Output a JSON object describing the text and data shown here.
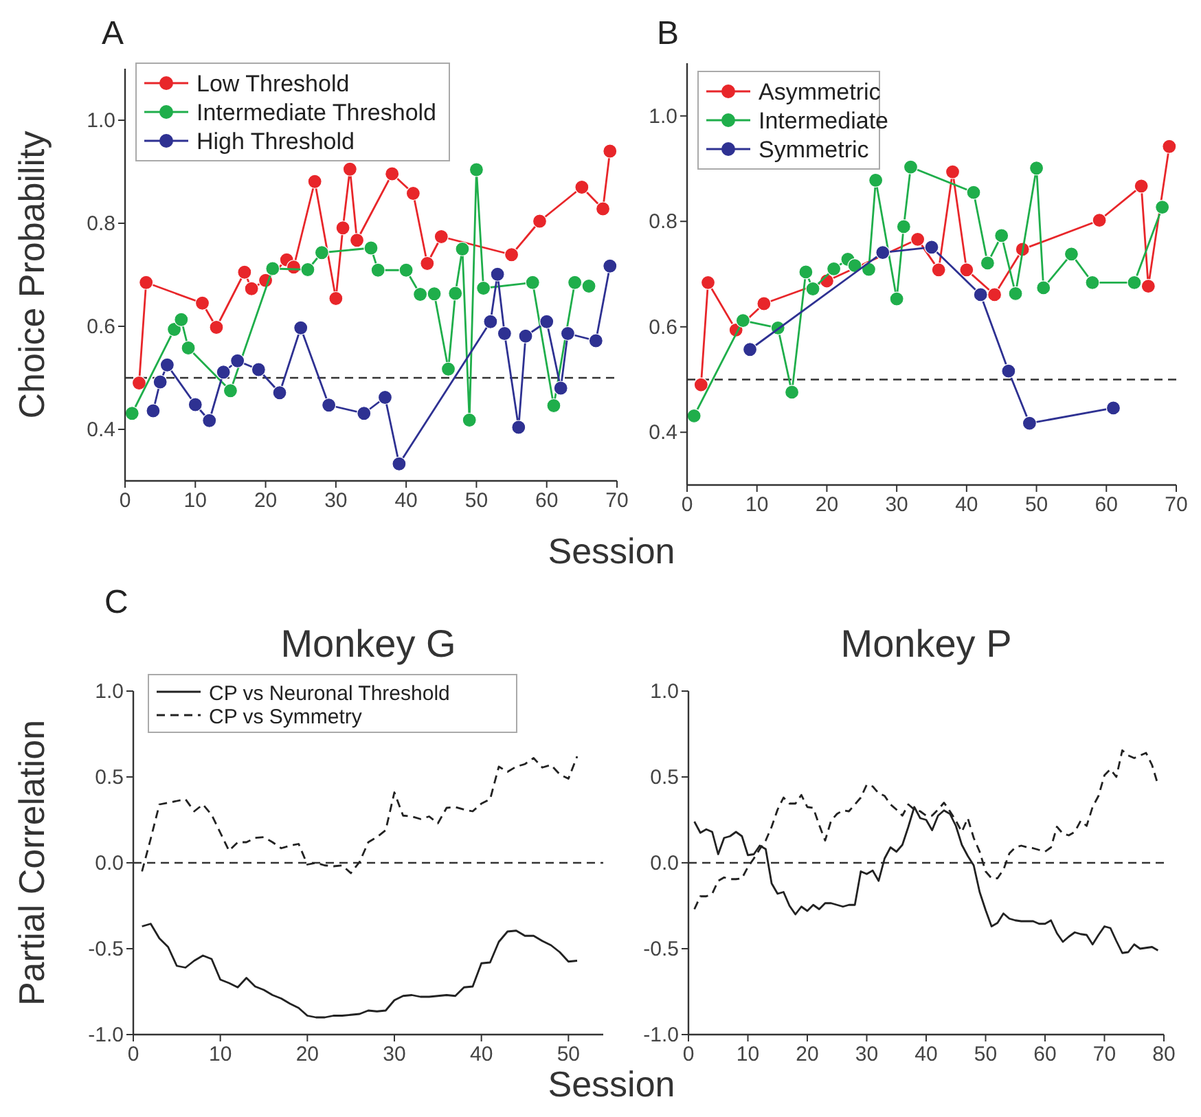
{
  "chart_data": [
    {
      "type": "line",
      "xlabel": "Session",
      "ylabel": "Choice Probability",
      "annotations": [
        "A"
      ],
      "xlim": [
        0,
        70
      ],
      "ylim": [
        0.3,
        1.1
      ],
      "xticks": [
        0,
        10,
        20,
        30,
        40,
        50,
        60,
        70
      ],
      "yticks": [
        {
          "value": 0.4,
          "label": "0.4"
        },
        {
          "value": 0.6,
          "label": "0.6"
        },
        {
          "value": 0.8,
          "label": "0.8"
        },
        {
          "value": 1.0,
          "label": "1.0"
        }
      ],
      "legend": "top left",
      "marker": "circle",
      "ref_lines": [
        {
          "axis": "y",
          "value": 0.5,
          "line_style": "dashed",
          "color": "#333333"
        }
      ],
      "series": [
        {
          "name": "Low Threshold",
          "color": "#e8262a",
          "x": [
            2,
            3,
            11,
            13,
            17,
            18,
            20,
            23,
            24,
            27,
            30,
            31,
            32,
            33,
            38,
            41,
            43,
            45,
            55,
            59,
            65,
            68,
            69
          ],
          "values": [
            0.49,
            0.685,
            0.645,
            0.598,
            0.705,
            0.673,
            0.689,
            0.729,
            0.715,
            0.881,
            0.654,
            0.791,
            0.905,
            0.767,
            0.896,
            0.858,
            0.722,
            0.774,
            0.739,
            0.804,
            0.87,
            0.828,
            0.94
          ]
        },
        {
          "name": "Intermediate Threshold",
          "color": "#1fae4b",
          "x": [
            1,
            7,
            8,
            9,
            15,
            21,
            26,
            28,
            35,
            36,
            40,
            42,
            44,
            46,
            47,
            48,
            49,
            50,
            51,
            58,
            61,
            64,
            66
          ],
          "values": [
            0.431,
            0.594,
            0.613,
            0.558,
            0.475,
            0.712,
            0.71,
            0.743,
            0.752,
            0.709,
            0.709,
            0.662,
            0.663,
            0.517,
            0.664,
            0.75,
            0.418,
            0.904,
            0.674,
            0.685,
            0.446,
            0.685,
            0.678
          ]
        },
        {
          "name": "High Threshold",
          "color": "#2e3192",
          "x": [
            4,
            5,
            6,
            10,
            12,
            14,
            16,
            19,
            22,
            25,
            29,
            34,
            37,
            39,
            52,
            53,
            54,
            56,
            57,
            60,
            62,
            63,
            67,
            69
          ],
          "values": [
            0.436,
            0.492,
            0.525,
            0.448,
            0.417,
            0.511,
            0.533,
            0.516,
            0.471,
            0.597,
            0.447,
            0.431,
            0.462,
            0.333,
            0.609,
            0.701,
            0.586,
            0.404,
            0.581,
            0.609,
            0.48,
            0.586,
            0.572,
            0.717
          ]
        }
      ]
    },
    {
      "type": "line",
      "annotations": [
        "B"
      ],
      "xlim": [
        0,
        70
      ],
      "ylim": [
        0.3,
        1.1
      ],
      "xticks": [
        0,
        10,
        20,
        30,
        40,
        50,
        60,
        70
      ],
      "yticks": [
        {
          "value": 0.4,
          "label": "0.4"
        },
        {
          "value": 0.6,
          "label": "0.6"
        },
        {
          "value": 0.8,
          "label": "0.8"
        },
        {
          "value": 1.0,
          "label": "1.0"
        }
      ],
      "legend": "top left",
      "marker": "circle",
      "ref_lines": [
        {
          "axis": "y",
          "value": 0.5,
          "line_style": "dashed",
          "color": "#333333"
        }
      ],
      "series": [
        {
          "name": "Asymmetric",
          "color": "#e8262a",
          "x": [
            2,
            3,
            7,
            11,
            20,
            33,
            36,
            38,
            40,
            44,
            48,
            59,
            65,
            66,
            69
          ],
          "values": [
            0.49,
            0.684,
            0.594,
            0.644,
            0.687,
            0.766,
            0.708,
            0.894,
            0.708,
            0.661,
            0.747,
            0.802,
            0.867,
            0.677,
            0.942
          ]
        },
        {
          "name": "Intermediate",
          "color": "#1fae4b",
          "x": [
            1,
            8,
            13,
            15,
            17,
            18,
            21,
            23,
            24,
            26,
            27,
            30,
            31,
            32,
            41,
            43,
            45,
            47,
            50,
            51,
            55,
            58,
            64,
            68
          ],
          "values": [
            0.431,
            0.612,
            0.598,
            0.476,
            0.704,
            0.672,
            0.71,
            0.728,
            0.716,
            0.709,
            0.878,
            0.653,
            0.79,
            0.903,
            0.855,
            0.721,
            0.773,
            0.663,
            0.901,
            0.674,
            0.738,
            0.684,
            0.684,
            0.827
          ]
        },
        {
          "name": "Symmetric",
          "color": "#2e3192",
          "x": [
            9,
            28,
            35,
            42,
            46,
            49,
            61
          ],
          "values": [
            0.557,
            0.741,
            0.751,
            0.661,
            0.516,
            0.417,
            0.446
          ]
        }
      ]
    },
    {
      "type": "line",
      "title": "Monkey G",
      "xlabel": "Session",
      "ylabel": "Partial Correlation",
      "annotations": [
        "C"
      ],
      "xlim": [
        0,
        54
      ],
      "ylim": [
        -1,
        1
      ],
      "xticks": [
        0,
        10,
        20,
        30,
        40,
        50
      ],
      "yticks": [
        {
          "value": -1,
          "label": "-1.0"
        },
        {
          "value": -0.5,
          "label": "-0.5"
        },
        {
          "value": 0,
          "label": "0.0"
        },
        {
          "value": 0.5,
          "label": "0.5"
        },
        {
          "value": 1,
          "label": "1.0"
        }
      ],
      "legend": "top",
      "marker": "none",
      "ref_lines": [
        {
          "axis": "y",
          "value": 0,
          "line_style": "dashed",
          "color": "#333333"
        }
      ],
      "series": [
        {
          "name": "CP vs Neuronal Threshold",
          "color": "#222222",
          "line_style": "solid",
          "x": [
            1,
            2,
            3,
            4,
            5,
            6,
            7,
            8,
            9,
            10,
            11,
            12,
            13,
            14,
            15,
            16,
            17,
            18,
            19,
            20,
            21,
            22,
            23,
            24,
            25,
            26,
            27,
            28,
            29,
            30,
            31,
            32,
            33,
            34,
            35,
            36,
            37,
            38,
            39,
            40,
            41,
            42,
            43,
            44,
            45,
            46,
            47,
            48,
            49,
            50,
            51
          ],
          "values": [
            -0.37,
            -0.355,
            -0.44,
            -0.49,
            -0.6,
            -0.61,
            -0.57,
            -0.54,
            -0.56,
            -0.68,
            -0.7,
            -0.725,
            -0.67,
            -0.72,
            -0.74,
            -0.77,
            -0.79,
            -0.82,
            -0.845,
            -0.89,
            -0.9,
            -0.9,
            -0.89,
            -0.89,
            -0.885,
            -0.88,
            -0.86,
            -0.865,
            -0.86,
            -0.8,
            -0.775,
            -0.77,
            -0.78,
            -0.78,
            -0.775,
            -0.77,
            -0.775,
            -0.725,
            -0.72,
            -0.585,
            -0.58,
            -0.46,
            -0.4,
            -0.395,
            -0.425,
            -0.425,
            -0.455,
            -0.48,
            -0.52,
            -0.575,
            -0.57
          ]
        },
        {
          "name": "CP vs Symmetry",
          "color": "#222222",
          "line_style": "dashed",
          "x": [
            1,
            2,
            3,
            4,
            5,
            6,
            7,
            8,
            9,
            10,
            11,
            12,
            13,
            14,
            15,
            16,
            17,
            18,
            19,
            20,
            21,
            22,
            23,
            24,
            25,
            26,
            27,
            28,
            29,
            30,
            31,
            32,
            33,
            34,
            35,
            36,
            37,
            38,
            39,
            40,
            41,
            42,
            43,
            44,
            45,
            46,
            47,
            48,
            49,
            50,
            51
          ],
          "values": [
            -0.05,
            0.14,
            0.34,
            0.35,
            0.36,
            0.37,
            0.3,
            0.34,
            0.28,
            0.175,
            0.07,
            0.12,
            0.12,
            0.145,
            0.15,
            0.12,
            0.085,
            0.1,
            0.11,
            -0.01,
            0.0,
            -0.015,
            -0.02,
            -0.015,
            -0.06,
            0.005,
            0.12,
            0.15,
            0.19,
            0.41,
            0.275,
            0.27,
            0.255,
            0.27,
            0.23,
            0.32,
            0.325,
            0.31,
            0.3,
            0.345,
            0.37,
            0.56,
            0.53,
            0.56,
            0.575,
            0.61,
            0.555,
            0.57,
            0.515,
            0.49,
            0.62
          ]
        }
      ]
    },
    {
      "type": "line",
      "title": "Monkey P",
      "xlim": [
        0,
        80
      ],
      "ylim": [
        -1,
        1
      ],
      "xticks": [
        0,
        10,
        20,
        30,
        40,
        50,
        60,
        70,
        80
      ],
      "yticks": [
        {
          "value": -1,
          "label": "-1.0"
        },
        {
          "value": -0.5,
          "label": "-0.5"
        },
        {
          "value": 0,
          "label": "0.0"
        },
        {
          "value": 0.5,
          "label": "0.5"
        },
        {
          "value": 1,
          "label": "1.0"
        }
      ],
      "marker": "none",
      "ref_lines": [
        {
          "axis": "y",
          "value": 0,
          "line_style": "dashed",
          "color": "#333333"
        }
      ],
      "series": [
        {
          "color": "#222222",
          "line_style": "solid",
          "x": [
            1,
            2,
            3,
            4,
            5,
            6,
            7,
            8,
            9,
            10,
            11,
            12,
            13,
            14,
            15,
            16,
            17,
            18,
            19,
            20,
            21,
            22,
            23,
            24,
            25,
            26,
            27,
            28,
            29,
            30,
            31,
            32,
            33,
            34,
            35,
            36,
            37,
            38,
            39,
            40,
            41,
            42,
            43,
            44,
            45,
            46,
            47,
            48,
            49,
            50,
            51,
            52,
            53,
            54,
            55,
            56,
            57,
            58,
            59,
            60,
            61,
            62,
            63,
            64,
            65,
            66,
            67,
            68,
            69,
            70,
            71,
            72,
            73,
            74,
            75,
            76,
            77,
            78,
            79
          ],
          "values": [
            0.24,
            0.175,
            0.195,
            0.18,
            0.05,
            0.145,
            0.155,
            0.18,
            0.155,
            0.045,
            0.05,
            0.1,
            0.08,
            -0.12,
            -0.18,
            -0.17,
            -0.25,
            -0.3,
            -0.255,
            -0.28,
            -0.245,
            -0.27,
            -0.235,
            -0.235,
            -0.245,
            -0.255,
            -0.245,
            -0.245,
            -0.05,
            -0.065,
            -0.045,
            -0.105,
            0.025,
            0.09,
            0.065,
            0.105,
            0.21,
            0.325,
            0.26,
            0.25,
            0.19,
            0.275,
            0.305,
            0.285,
            0.215,
            0.105,
            0.04,
            -0.015,
            -0.17,
            -0.275,
            -0.37,
            -0.35,
            -0.295,
            -0.325,
            -0.335,
            -0.34,
            -0.34,
            -0.34,
            -0.355,
            -0.355,
            -0.335,
            -0.41,
            -0.46,
            -0.43,
            -0.405,
            -0.415,
            -0.42,
            -0.475,
            -0.42,
            -0.37,
            -0.38,
            -0.455,
            -0.525,
            -0.52,
            -0.475,
            -0.5,
            -0.495,
            -0.49,
            -0.51
          ]
        },
        {
          "color": "#222222",
          "line_style": "dashed",
          "x": [
            1,
            2,
            3,
            4,
            5,
            6,
            7,
            8,
            9,
            10,
            11,
            12,
            13,
            14,
            15,
            16,
            17,
            18,
            19,
            20,
            21,
            22,
            23,
            24,
            25,
            26,
            27,
            28,
            29,
            30,
            31,
            32,
            33,
            34,
            35,
            36,
            37,
            38,
            39,
            40,
            41,
            42,
            43,
            44,
            45,
            46,
            47,
            48,
            49,
            50,
            51,
            52,
            53,
            54,
            55,
            56,
            57,
            58,
            59,
            60,
            61,
            62,
            63,
            64,
            65,
            66,
            67,
            68,
            69,
            70,
            71,
            72,
            73,
            74,
            75,
            76,
            77,
            78,
            79
          ],
          "values": [
            -0.27,
            -0.195,
            -0.195,
            -0.18,
            -0.105,
            -0.085,
            -0.095,
            -0.095,
            -0.09,
            -0.025,
            0.025,
            0.08,
            0.13,
            0.21,
            0.31,
            0.38,
            0.345,
            0.345,
            0.395,
            0.325,
            0.32,
            0.22,
            0.13,
            0.245,
            0.285,
            0.305,
            0.3,
            0.34,
            0.38,
            0.455,
            0.445,
            0.405,
            0.39,
            0.34,
            0.31,
            0.275,
            0.34,
            0.31,
            0.3,
            0.275,
            0.275,
            0.31,
            0.35,
            0.3,
            0.245,
            0.18,
            0.26,
            0.145,
            0.065,
            -0.05,
            -0.09,
            -0.09,
            -0.04,
            0.055,
            0.09,
            0.1,
            0.09,
            0.085,
            0.075,
            0.065,
            0.09,
            0.21,
            0.17,
            0.16,
            0.18,
            0.245,
            0.215,
            0.325,
            0.39,
            0.51,
            0.545,
            0.5,
            0.655,
            0.625,
            0.61,
            0.625,
            0.64,
            0.57,
            0.455
          ]
        }
      ]
    }
  ]
}
